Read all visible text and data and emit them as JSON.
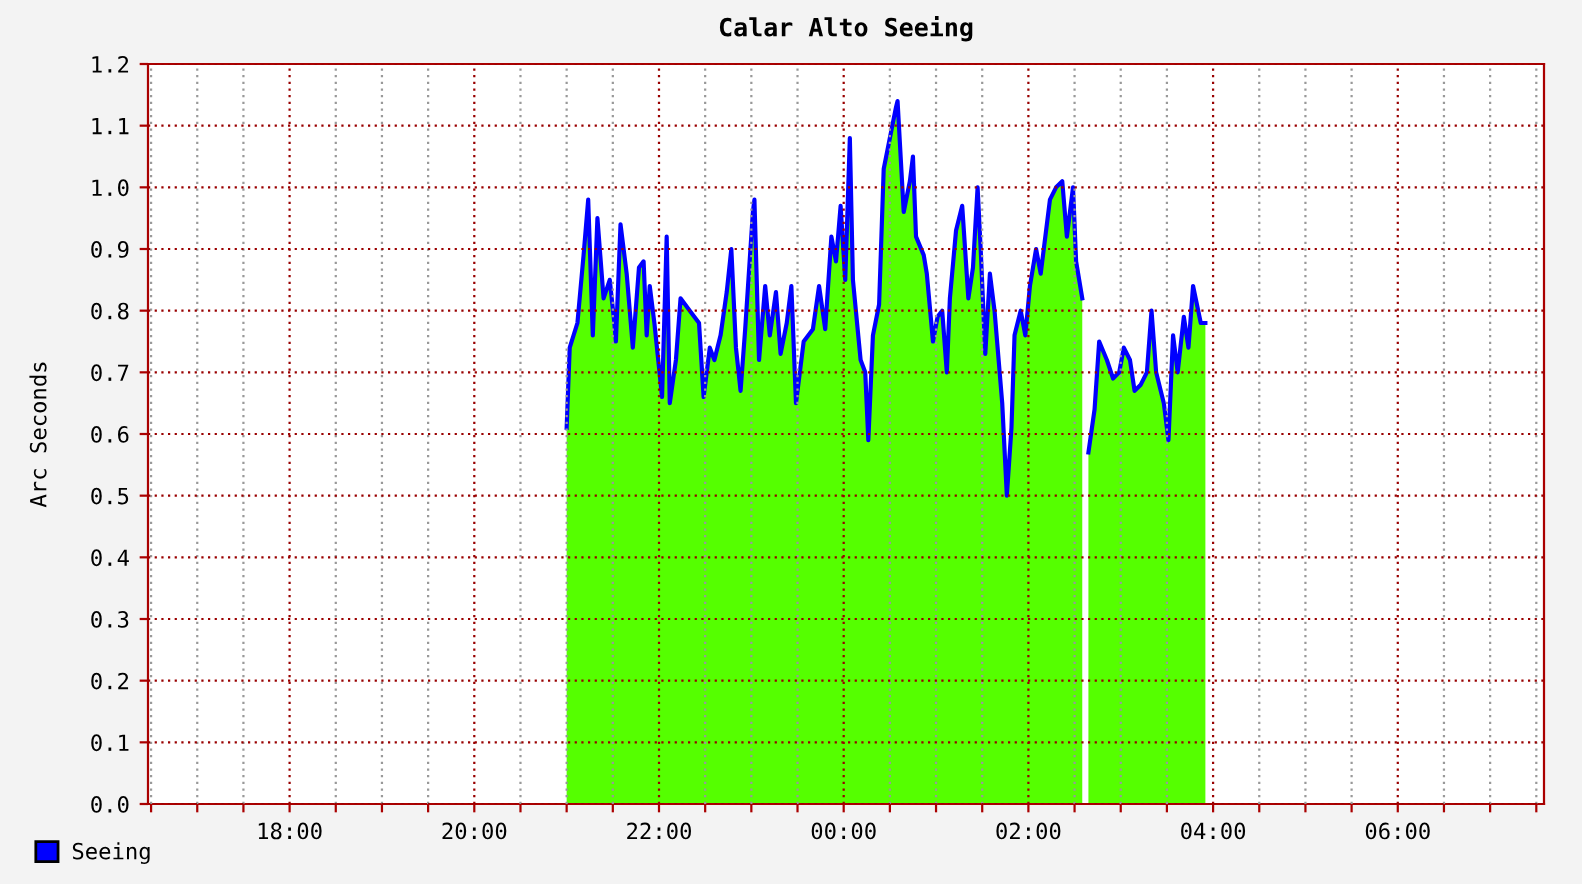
{
  "chart_data": {
    "type": "area",
    "title": "Calar Alto Seeing",
    "ylabel": "Arc Seconds",
    "x": [
      "2000-01-01T21:00",
      "2000-01-01T21:02",
      "2000-01-01T21:07",
      "2000-01-01T21:11",
      "2000-01-01T21:14",
      "2000-01-01T21:17",
      "2000-01-01T21:20",
      "2000-01-01T21:24",
      "2000-01-01T21:28",
      "2000-01-01T21:31",
      "2000-01-01T21:32",
      "2000-01-01T21:35",
      "2000-01-01T21:39",
      "2000-01-01T21:43",
      "2000-01-01T21:47",
      "2000-01-01T21:50",
      "2000-01-01T21:52",
      "2000-01-01T21:54",
      "2000-01-01T21:57",
      "2000-01-01T22:02",
      "2000-01-01T22:05",
      "2000-01-01T22:07",
      "2000-01-01T22:11",
      "2000-01-01T22:14",
      "2000-01-01T22:20",
      "2000-01-01T22:26",
      "2000-01-01T22:29",
      "2000-01-01T22:33",
      "2000-01-01T22:36",
      "2000-01-01T22:40",
      "2000-01-01T22:44",
      "2000-01-01T22:47",
      "2000-01-01T22:50",
      "2000-01-01T22:53",
      "2000-01-01T22:56",
      "2000-01-01T23:01",
      "2000-01-01T23:02",
      "2000-01-01T23:05",
      "2000-01-01T23:09",
      "2000-01-01T23:12",
      "2000-01-01T23:16",
      "2000-01-01T23:19",
      "2000-01-01T23:23",
      "2000-01-01T23:26",
      "2000-01-01T23:29",
      "2000-01-01T23:34",
      "2000-01-01T23:40",
      "2000-01-01T23:44",
      "2000-01-01T23:48",
      "2000-01-01T23:52",
      "2000-01-01T23:55",
      "2000-01-01T23:58",
      "2000-01-02T00:01",
      "2000-01-02T00:04",
      "2000-01-02T00:06",
      "2000-01-02T00:11",
      "2000-01-02T00:14",
      "2000-01-02T00:16",
      "2000-01-02T00:19",
      "2000-01-02T00:23",
      "2000-01-02T00:26",
      "2000-01-02T00:30",
      "2000-01-02T00:34",
      "2000-01-02T00:35",
      "2000-01-02T00:39",
      "2000-01-02T00:43",
      "2000-01-02T00:45",
      "2000-01-02T00:47",
      "2000-01-02T00:52",
      "2000-01-02T00:54",
      "2000-01-02T00:58",
      "2000-01-02T01:01",
      "2000-01-02T01:04",
      "2000-01-02T01:07",
      "2000-01-02T01:09",
      "2000-01-02T01:13",
      "2000-01-02T01:17",
      "2000-01-02T01:21",
      "2000-01-02T01:24",
      "2000-01-02T01:27",
      "2000-01-02T01:29",
      "2000-01-02T01:32",
      "2000-01-02T01:35",
      "2000-01-02T01:38",
      "2000-01-02T01:43",
      "2000-01-02T01:46",
      "2000-01-02T01:49",
      "2000-01-02T01:51",
      "2000-01-02T01:55",
      "2000-01-02T01:58",
      "2000-01-02T02:01",
      "2000-01-02T02:05",
      "2000-01-02T02:08",
      "2000-01-02T02:14",
      "2000-01-02T02:18",
      "2000-01-02T02:22",
      "2000-01-02T02:25",
      "2000-01-02T02:29",
      "2000-01-02T02:31",
      "2000-01-02T02:35",
      "2000-01-02T02:37",
      "2000-01-02T02:39",
      "2000-01-02T02:43",
      "2000-01-02T02:46",
      "2000-01-02T02:51",
      "2000-01-02T02:55",
      "2000-01-02T02:59",
      "2000-01-02T03:02",
      "2000-01-02T03:06",
      "2000-01-02T03:09",
      "2000-01-02T03:13",
      "2000-01-02T03:17",
      "2000-01-02T03:20",
      "2000-01-02T03:23",
      "2000-01-02T03:28",
      "2000-01-02T03:31",
      "2000-01-02T03:34",
      "2000-01-02T03:37",
      "2000-01-02T03:41",
      "2000-01-02T03:44",
      "2000-01-02T03:47",
      "2000-01-02T03:52",
      "2000-01-02T03:55"
    ],
    "series": [
      {
        "type": "area",
        "color": "#55ff00",
        "values": [
          0.61,
          0.74,
          0.78,
          0.89,
          0.98,
          0.76,
          0.95,
          0.82,
          0.85,
          0.78,
          0.75,
          0.94,
          0.86,
          0.74,
          0.87,
          0.88,
          0.76,
          0.84,
          0.78,
          0.66,
          0.92,
          0.65,
          0.72,
          0.82,
          0.8,
          0.78,
          0.66,
          0.74,
          0.72,
          0.76,
          0.83,
          0.9,
          0.74,
          0.67,
          0.77,
          0.96,
          0.98,
          0.72,
          0.84,
          0.76,
          0.83,
          0.73,
          0.78,
          0.84,
          0.65,
          0.75,
          0.77,
          0.84,
          0.77,
          0.92,
          0.88,
          0.97,
          0.85,
          1.08,
          0.85,
          0.72,
          0.7,
          0.59,
          0.76,
          0.81,
          1.03,
          1.08,
          1.13,
          1.14,
          0.96,
          1.01,
          1.05,
          0.92,
          0.89,
          0.86,
          0.75,
          0.79,
          0.8,
          0.7,
          0.82,
          0.93,
          0.97,
          0.82,
          0.87,
          1.0,
          0.9,
          0.73,
          0.86,
          0.8,
          0.65,
          0.5,
          0.61,
          0.76,
          0.8,
          0.76,
          0.84,
          0.9,
          0.86,
          0.98,
          1.0,
          1.01,
          0.92,
          1.0,
          0.88,
          0.82,
          null,
          0.57,
          0.64,
          0.75,
          0.72,
          0.69,
          0.7,
          0.74,
          0.72,
          0.67,
          0.68,
          0.7,
          0.8,
          0.7,
          0.65,
          0.59,
          0.76,
          0.7,
          0.79,
          0.74,
          0.84,
          0.78,
          0.78
        ]
      },
      {
        "type": "line",
        "name": "Seeing",
        "color": "#0000ff",
        "values": [
          0.61,
          0.74,
          0.78,
          0.89,
          0.98,
          0.76,
          0.95,
          0.82,
          0.85,
          0.78,
          0.75,
          0.94,
          0.86,
          0.74,
          0.87,
          0.88,
          0.76,
          0.84,
          0.78,
          0.66,
          0.92,
          0.65,
          0.72,
          0.82,
          0.8,
          0.78,
          0.66,
          0.74,
          0.72,
          0.76,
          0.83,
          0.9,
          0.74,
          0.67,
          0.77,
          0.96,
          0.98,
          0.72,
          0.84,
          0.76,
          0.83,
          0.73,
          0.78,
          0.84,
          0.65,
          0.75,
          0.77,
          0.84,
          0.77,
          0.92,
          0.88,
          0.97,
          0.85,
          1.08,
          0.85,
          0.72,
          0.7,
          0.59,
          0.76,
          0.81,
          1.03,
          1.08,
          1.13,
          1.14,
          0.96,
          1.01,
          1.05,
          0.92,
          0.89,
          0.86,
          0.75,
          0.79,
          0.8,
          0.7,
          0.82,
          0.93,
          0.97,
          0.82,
          0.87,
          1.0,
          0.9,
          0.73,
          0.86,
          0.8,
          0.65,
          0.5,
          0.61,
          0.76,
          0.8,
          0.76,
          0.84,
          0.9,
          0.86,
          0.98,
          1.0,
          1.01,
          0.92,
          1.0,
          0.88,
          0.82,
          null,
          0.57,
          0.64,
          0.75,
          0.72,
          0.69,
          0.7,
          0.74,
          0.72,
          0.67,
          0.68,
          0.7,
          0.8,
          0.7,
          0.65,
          0.59,
          0.76,
          0.7,
          0.79,
          0.74,
          0.84,
          0.78,
          0.78
        ]
      }
    ],
    "xlim": [
      "2000-01-01T16:28",
      "2000-01-02T07:35"
    ],
    "xticks": [
      {
        "value": "2000-01-01T16:30",
        "label": null
      },
      {
        "value": "2000-01-01T17:00",
        "label": null
      },
      {
        "value": "2000-01-01T17:30",
        "label": null
      },
      {
        "value": "2000-01-01T18:00",
        "label": "18:00"
      },
      {
        "value": "2000-01-01T18:30",
        "label": null
      },
      {
        "value": "2000-01-01T19:00",
        "label": null
      },
      {
        "value": "2000-01-01T19:30",
        "label": null
      },
      {
        "value": "2000-01-01T20:00",
        "label": "20:00"
      },
      {
        "value": "2000-01-01T20:30",
        "label": null
      },
      {
        "value": "2000-01-01T21:00",
        "label": null
      },
      {
        "value": "2000-01-01T21:30",
        "label": null
      },
      {
        "value": "2000-01-01T22:00",
        "label": "22:00"
      },
      {
        "value": "2000-01-01T22:30",
        "label": null
      },
      {
        "value": "2000-01-01T23:00",
        "label": null
      },
      {
        "value": "2000-01-01T23:30",
        "label": null
      },
      {
        "value": "2000-01-02T00:00",
        "label": "00:00"
      },
      {
        "value": "2000-01-02T00:30",
        "label": null
      },
      {
        "value": "2000-01-02T01:00",
        "label": null
      },
      {
        "value": "2000-01-02T01:30",
        "label": null
      },
      {
        "value": "2000-01-02T02:00",
        "label": "02:00"
      },
      {
        "value": "2000-01-02T02:30",
        "label": null
      },
      {
        "value": "2000-01-02T03:00",
        "label": null
      },
      {
        "value": "2000-01-02T03:30",
        "label": null
      },
      {
        "value": "2000-01-02T04:00",
        "label": "04:00"
      },
      {
        "value": "2000-01-02T04:30",
        "label": null
      },
      {
        "value": "2000-01-02T05:00",
        "label": null
      },
      {
        "value": "2000-01-02T05:30",
        "label": null
      },
      {
        "value": "2000-01-02T06:00",
        "label": "06:00"
      },
      {
        "value": "2000-01-02T06:30",
        "label": null
      },
      {
        "value": "2000-01-02T07:00",
        "label": null
      },
      {
        "value": "2000-01-02T07:30",
        "label": null
      }
    ],
    "ylim": [
      0,
      1.2
    ],
    "yticks": [
      {
        "value": 0,
        "label": "0.0"
      },
      {
        "value": 0.1,
        "label": "0.1"
      },
      {
        "value": 0.2,
        "label": "0.2"
      },
      {
        "value": 0.3,
        "label": "0.3"
      },
      {
        "value": 0.4,
        "label": "0.4"
      },
      {
        "value": 0.5,
        "label": "0.5"
      },
      {
        "value": 0.6,
        "label": "0.6"
      },
      {
        "value": 0.7,
        "label": "0.7"
      },
      {
        "value": 0.8,
        "label": "0.8"
      },
      {
        "value": 0.9,
        "label": "0.9"
      },
      {
        "value": 1.0,
        "label": "1.0"
      },
      {
        "value": 1.1,
        "label": "1.1"
      },
      {
        "value": 1.2,
        "label": "1.2"
      }
    ],
    "grid": true,
    "legend": "bottom left",
    "line_style": "solid",
    "marker": "none"
  }
}
